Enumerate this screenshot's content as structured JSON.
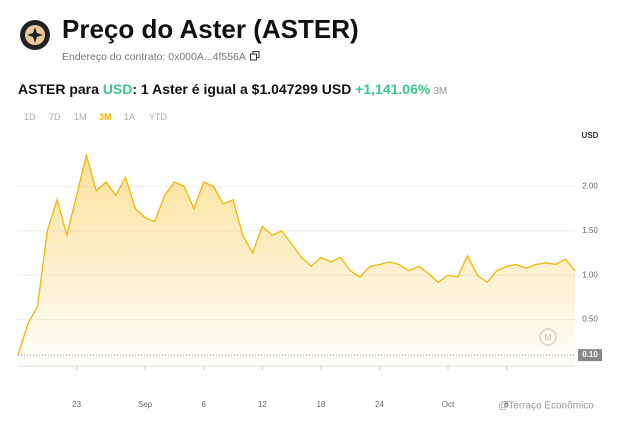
{
  "header": {
    "title": "Preço do Aster (ASTER)",
    "contract": "Endereço do contrato: 0x000A...4f556A"
  },
  "conversion": {
    "from": "ASTER",
    "connector": "para",
    "to": "USD",
    "rate": ": 1 Aster é igual a $1.047299 USD",
    "change": "+1,141.06%",
    "period": "3M"
  },
  "ranges": [
    "1D",
    "7D",
    "1M",
    "3M",
    "1A",
    "YTD"
  ],
  "active_range_index": 3,
  "watermark": "@Terraço Econômico",
  "chart_data": {
    "type": "area",
    "y_label": "USD",
    "color": "#f2b705",
    "grid": true,
    "values": [
      0.1,
      0.45,
      0.65,
      1.5,
      1.85,
      1.45,
      1.9,
      2.35,
      1.95,
      2.05,
      1.9,
      2.1,
      1.75,
      1.65,
      1.6,
      1.9,
      2.05,
      2.0,
      1.75,
      2.05,
      2.0,
      1.8,
      1.85,
      1.45,
      1.25,
      1.55,
      1.45,
      1.5,
      1.35,
      1.2,
      1.1,
      1.2,
      1.15,
      1.2,
      1.05,
      0.98,
      1.1,
      1.12,
      1.15,
      1.12,
      1.05,
      1.1,
      1.02,
      0.92,
      1.0,
      0.98,
      1.22,
      1.0,
      0.92,
      1.05,
      1.1,
      1.12,
      1.08,
      1.12,
      1.14,
      1.12,
      1.18,
      1.05
    ],
    "xlim": [
      0,
      57
    ],
    "xticks": [
      {
        "value": 6,
        "label": "23"
      },
      {
        "value": 13,
        "label": "Sep"
      },
      {
        "value": 19,
        "label": "6"
      },
      {
        "value": 25,
        "label": "12"
      },
      {
        "value": 31,
        "label": "18"
      },
      {
        "value": 37,
        "label": "24"
      },
      {
        "value": 44,
        "label": "Oct"
      },
      {
        "value": 50,
        "label": "6"
      }
    ],
    "ylim": [
      0,
      2.5
    ],
    "yticks": [
      {
        "value": 0.5,
        "label": "0.50"
      },
      {
        "value": 1,
        "label": "1.00"
      },
      {
        "value": 1.5,
        "label": "1.50"
      },
      {
        "value": 2,
        "label": "2.00"
      }
    ],
    "reference_line": {
      "value": 0.1,
      "label": "0.10"
    }
  }
}
